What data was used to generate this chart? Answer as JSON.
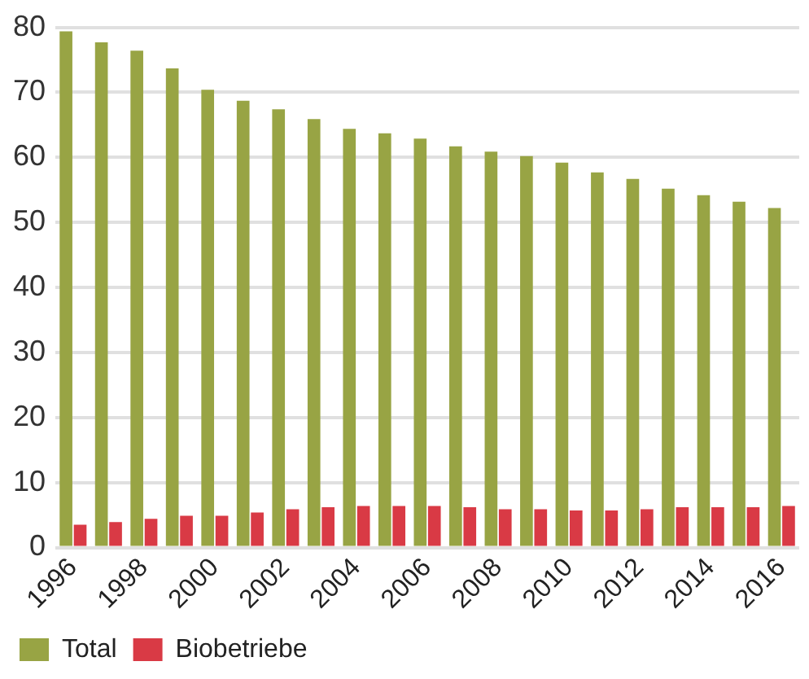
{
  "chart_data": {
    "type": "bar",
    "categories": [
      "1996",
      null,
      "1998",
      null,
      "2000",
      null,
      "2002",
      null,
      "2004",
      null,
      "2006",
      null,
      "2008",
      null,
      "2010",
      null,
      "2012",
      null,
      "2014",
      null,
      "2016"
    ],
    "series": [
      {
        "name": "Total",
        "color": "#98a444",
        "values": [
          79.4,
          77.7,
          76.4,
          73.7,
          70.4,
          68.7,
          67.4,
          65.9,
          64.4,
          63.7,
          62.9,
          61.7,
          60.9,
          60.2,
          59.2,
          57.7,
          56.7,
          55.2,
          54.2,
          53.2,
          52.2
        ]
      },
      {
        "name": "Biobetriebe",
        "color": "#d93a45",
        "values": [
          3.5,
          3.9,
          4.4,
          4.9,
          4.9,
          5.4,
          5.9,
          6.2,
          6.4,
          6.4,
          6.4,
          6.2,
          5.9,
          5.9,
          5.7,
          5.7,
          5.9,
          6.2,
          6.2,
          6.2,
          6.4
        ]
      }
    ],
    "ylim": [
      0,
      80
    ],
    "yticks": [
      0,
      10,
      20,
      30,
      40,
      50,
      60,
      70,
      80
    ],
    "grid": "y",
    "legend": "bottom left"
  }
}
